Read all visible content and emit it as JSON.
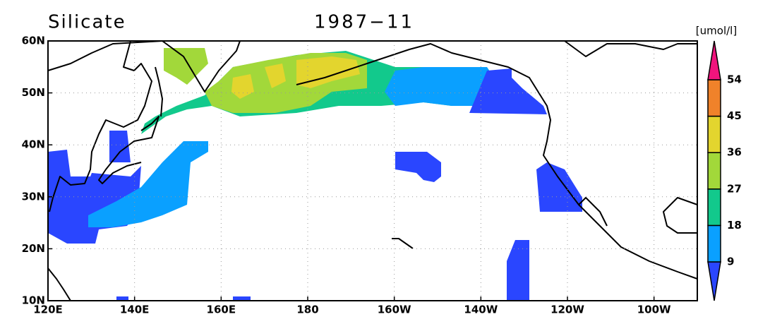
{
  "header": {
    "title": "Silicate",
    "date": "1987−11",
    "unit": "[umol/l]"
  },
  "map": {
    "xlim": [
      120,
      270
    ],
    "ylim": [
      10,
      60
    ],
    "xticks": [
      {
        "value": 120,
        "label": "120E"
      },
      {
        "value": 140,
        "label": "140E"
      },
      {
        "value": 160,
        "label": "160E"
      },
      180,
      {
        "value": 200,
        "label": "160W"
      },
      {
        "value": 220,
        "label": "140W"
      },
      {
        "value": 240,
        "label": "120W"
      },
      {
        "value": 260,
        "label": "100W"
      }
    ],
    "yticks": [
      {
        "value": 10,
        "label": "10N"
      },
      {
        "value": 20,
        "label": "20N"
      },
      {
        "value": 30,
        "label": "30N"
      },
      {
        "value": 40,
        "label": "40N"
      },
      {
        "value": 50,
        "label": "50N"
      },
      {
        "value": 60,
        "label": "60N"
      }
    ],
    "grid": true
  },
  "colorbar": {
    "levels": [
      9,
      18,
      27,
      36,
      45,
      54
    ],
    "colors": [
      "#2a46ff",
      "#0aa0ff",
      "#12c98c",
      "#a2d83a",
      "#e3d52e",
      "#f0822a",
      "#f0147d"
    ]
  }
}
